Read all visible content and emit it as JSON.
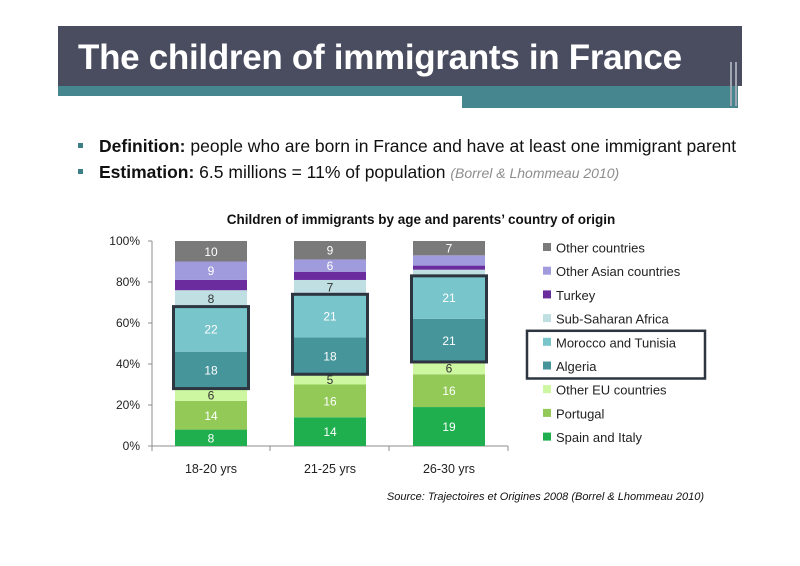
{
  "slide": {
    "title": "The children of immigrants in France",
    "bullets": [
      {
        "term": "Definition:",
        "text": "people who are born in France and have at least one immigrant parent"
      },
      {
        "term": "Estimation:",
        "text": "6.5 millions = 11% of population",
        "ref": "(Borrel & Lhommeau 2010)"
      }
    ],
    "source": "Source: Trajectoires et Origines 2008 (Borrel & Lhommeau 2010)"
  },
  "colors": {
    "title_bar": "#4a4d5f",
    "accent": "#45868f",
    "highlight_border": "#2d3540"
  },
  "chart_data": {
    "type": "bar",
    "stacked": true,
    "title": "Children of immigrants by age and parents’ country of origin",
    "categories": [
      "18-20 yrs",
      "21-25 yrs",
      "26-30 yrs"
    ],
    "ylim": [
      0,
      100
    ],
    "yticks": [
      0,
      20,
      40,
      60,
      80,
      100
    ],
    "ytick_labels": [
      "0%",
      "20%",
      "40%",
      "60%",
      "80%",
      "100%"
    ],
    "grid": false,
    "legend_position": "right",
    "highlighted_series": [
      "Morocco and Tunisia",
      "Algeria"
    ],
    "series": [
      {
        "name": "Spain and Italy",
        "color": "#1faf4e",
        "values": [
          8,
          14,
          19
        ],
        "labels": [
          "8",
          "14",
          "19"
        ]
      },
      {
        "name": "Portugal",
        "color": "#92c957",
        "values": [
          14,
          16,
          16
        ],
        "labels": [
          "14",
          "16",
          "16"
        ]
      },
      {
        "name": "Other EU countries",
        "color": "#cdf7a0",
        "values": [
          6,
          5,
          6
        ],
        "labels": [
          "6",
          "5",
          "6"
        ]
      },
      {
        "name": "Algeria",
        "color": "#45959b",
        "values": [
          18,
          18,
          21
        ],
        "labels": [
          "18",
          "18",
          "21"
        ]
      },
      {
        "name": "Morocco and Tunisia",
        "color": "#78c5cb",
        "values": [
          22,
          21,
          21
        ],
        "labels": [
          "22",
          "21",
          "21"
        ]
      },
      {
        "name": "Sub-Saharan Africa",
        "color": "#bfdfe2",
        "values": [
          8,
          7,
          3
        ],
        "labels": [
          "8",
          "7",
          ""
        ]
      },
      {
        "name": "Turkey",
        "color": "#6b2c9e",
        "values": [
          5,
          4,
          2
        ],
        "labels": [
          "",
          "",
          ""
        ]
      },
      {
        "name": "Other Asian countries",
        "color": "#a09bdc",
        "values": [
          9,
          6,
          5
        ],
        "labels": [
          "9",
          "6",
          ""
        ]
      },
      {
        "name": "Other countries",
        "color": "#7a7a7a",
        "values": [
          10,
          9,
          7
        ],
        "labels": [
          "10",
          "9",
          "7"
        ]
      }
    ]
  }
}
